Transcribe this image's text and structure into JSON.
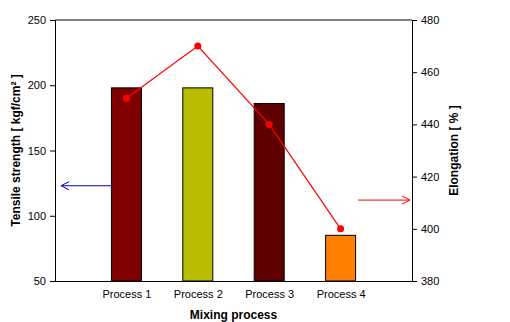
{
  "chart_data": {
    "type": "bar",
    "x_label": "Mixing process",
    "y_label": "Tensile strength [ kgf/cm² ]",
    "y2_label": "Elongation [ % ]",
    "categories": [
      "Process 1",
      "Process 2",
      "Process 3",
      "Process 4"
    ],
    "ylim": [
      50,
      250
    ],
    "yticks": [
      50,
      100,
      150,
      200,
      250
    ],
    "y2lim": [
      380,
      480
    ],
    "y2ticks": [
      380,
      400,
      420,
      440,
      460,
      480
    ],
    "series": [
      {
        "type": "bar",
        "colors": [
          "#800000",
          "#b8bd00",
          "#5e0000",
          "#ff8000"
        ],
        "values": [
          198,
          198,
          186,
          85
        ]
      },
      {
        "type": "line",
        "axis": "y2",
        "color": "#ff0000",
        "marker": "circle",
        "line_style": "solid",
        "values": [
          450,
          470,
          440,
          400
        ]
      }
    ]
  }
}
